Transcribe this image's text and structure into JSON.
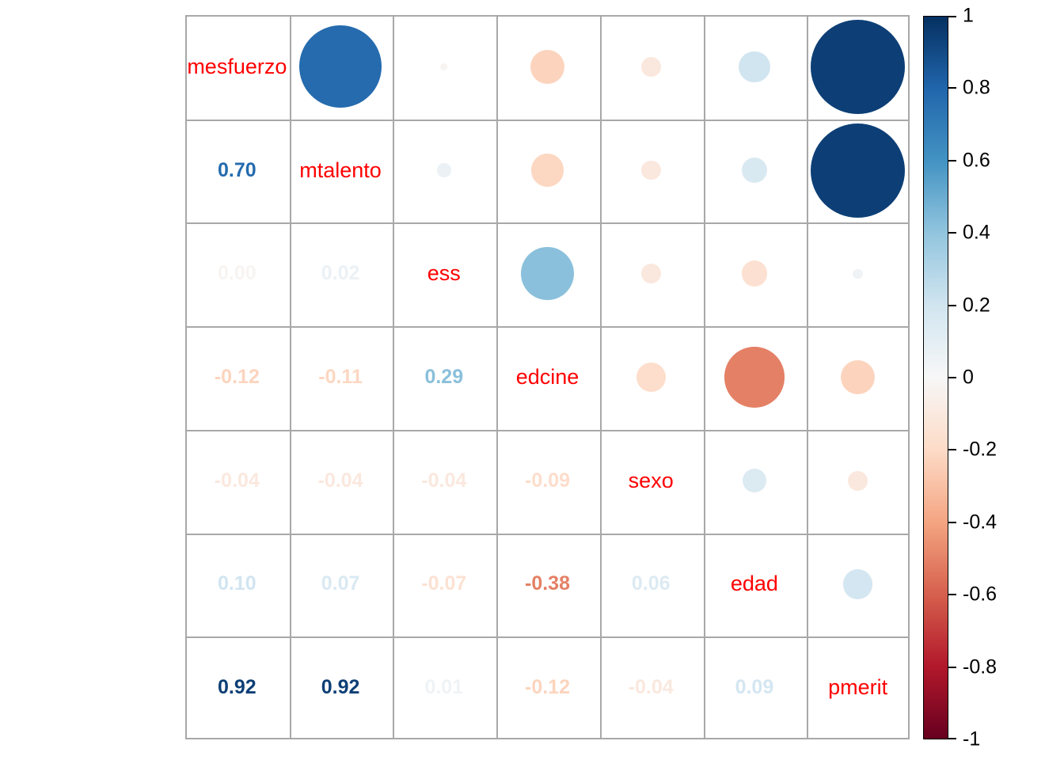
{
  "chart_data": {
    "type": "heatmap",
    "subtype": "correlation-matrix-mixed",
    "title": "",
    "variables": [
      "mesfuerzo",
      "mtalento",
      "ess",
      "edcine",
      "sexo",
      "edad",
      "pmerit"
    ],
    "diag_label_color": "#FF0000",
    "grid_line_color": "#A8A8A8",
    "cells": [
      {
        "row": "mtalento",
        "col": "mesfuerzo",
        "value": 0.7,
        "text": "0.70"
      },
      {
        "row": "ess",
        "col": "mesfuerzo",
        "value": -0.005,
        "text": "0.00"
      },
      {
        "row": "ess",
        "col": "mtalento",
        "value": 0.02,
        "text": "0.02"
      },
      {
        "row": "edcine",
        "col": "mesfuerzo",
        "value": -0.12,
        "text": "-0.12"
      },
      {
        "row": "edcine",
        "col": "mtalento",
        "value": -0.11,
        "text": "-0.11"
      },
      {
        "row": "edcine",
        "col": "ess",
        "value": 0.29,
        "text": "0.29"
      },
      {
        "row": "sexo",
        "col": "mesfuerzo",
        "value": -0.04,
        "text": "-0.04"
      },
      {
        "row": "sexo",
        "col": "mtalento",
        "value": -0.04,
        "text": "-0.04"
      },
      {
        "row": "sexo",
        "col": "ess",
        "value": -0.04,
        "text": "-0.04"
      },
      {
        "row": "sexo",
        "col": "edcine",
        "value": -0.09,
        "text": "-0.09"
      },
      {
        "row": "edad",
        "col": "mesfuerzo",
        "value": 0.1,
        "text": "0.10"
      },
      {
        "row": "edad",
        "col": "mtalento",
        "value": 0.07,
        "text": "0.07"
      },
      {
        "row": "edad",
        "col": "ess",
        "value": -0.07,
        "text": "-0.07"
      },
      {
        "row": "edad",
        "col": "edcine",
        "value": -0.38,
        "text": "-0.38"
      },
      {
        "row": "edad",
        "col": "sexo",
        "value": 0.06,
        "text": "0.06"
      },
      {
        "row": "pmerit",
        "col": "mesfuerzo",
        "value": 0.92,
        "text": "0.92"
      },
      {
        "row": "pmerit",
        "col": "mtalento",
        "value": 0.92,
        "text": "0.92"
      },
      {
        "row": "pmerit",
        "col": "ess",
        "value": 0.01,
        "text": "0.01"
      },
      {
        "row": "pmerit",
        "col": "edcine",
        "value": -0.12,
        "text": "-0.12"
      },
      {
        "row": "pmerit",
        "col": "sexo",
        "value": -0.04,
        "text": "-0.04"
      },
      {
        "row": "pmerit",
        "col": "edad",
        "value": 0.09,
        "text": "0.09"
      }
    ],
    "legend_position": "right",
    "colorbar": {
      "min": -1,
      "max": 1,
      "tick_labels": [
        "1",
        "0.8",
        "0.6",
        "0.4",
        "0.2",
        "0",
        "-0.2",
        "-0.4",
        "-0.6",
        "-0.8",
        "-1"
      ]
    },
    "palette_rdbu": [
      "#67001F",
      "#B2182B",
      "#D6604D",
      "#F4A582",
      "#FDDBC7",
      "#F7F7F7",
      "#D1E5F0",
      "#92C5DE",
      "#4393C3",
      "#2166AC",
      "#053061"
    ],
    "color_exponent": 0.7,
    "axis_ranges": {
      "note": "upper triangle circles area proportional to |r|, max diameter = cell size"
    }
  }
}
